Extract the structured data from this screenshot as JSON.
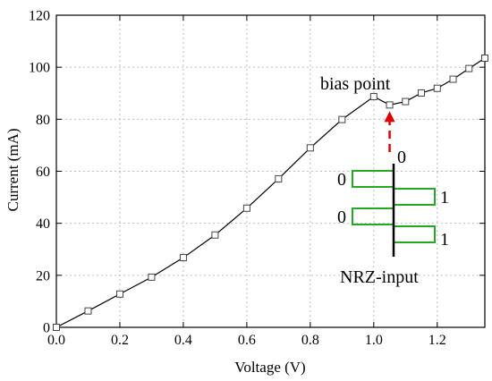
{
  "chart_data": {
    "type": "line",
    "xlabel": "Voltage (V)",
    "ylabel": "Current (mA)",
    "xlim": [
      0.0,
      1.35
    ],
    "ylim": [
      0,
      120
    ],
    "xticks": [
      0.0,
      0.2,
      0.4,
      0.6,
      0.8,
      1.0,
      1.2
    ],
    "xtick_labels": [
      "0.0",
      "0.2",
      "0.4",
      "0.6",
      "0.8",
      "1.0",
      "1.2"
    ],
    "yticks": [
      0,
      20,
      40,
      60,
      80,
      100,
      120
    ],
    "ytick_labels": [
      "0",
      "20",
      "40",
      "60",
      "80",
      "100",
      "120"
    ],
    "grid": true,
    "marker": "open-square",
    "series": [
      {
        "x": [
          0.0,
          0.1,
          0.2,
          0.3,
          0.4,
          0.5,
          0.6,
          0.7,
          0.8,
          0.9,
          1.0,
          1.05,
          1.1,
          1.15,
          1.2,
          1.25,
          1.3,
          1.35
        ],
        "y": [
          0,
          6.3,
          12.8,
          19.3,
          26.8,
          35.5,
          45.8,
          57.1,
          69.0,
          79.9,
          88.7,
          85.5,
          86.8,
          90.1,
          91.9,
          95.4,
          99.5,
          103.5
        ]
      }
    ],
    "annotations": {
      "bias_label": "bias point",
      "bias_x": 1.05,
      "bias_y": 85.5,
      "input_label": "NRZ-input",
      "bits": [
        {
          "text": "0",
          "value": 0
        },
        {
          "text": "0",
          "value": 0
        },
        {
          "text": "1",
          "value": 1
        },
        {
          "text": "0",
          "value": 0
        },
        {
          "text": "1",
          "value": 1
        }
      ],
      "arrow_color": "#e00000",
      "signal_color": "#22aa22"
    }
  }
}
